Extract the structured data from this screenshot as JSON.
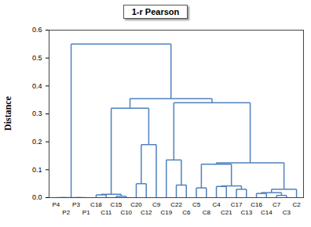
{
  "chart_data": {
    "type": "dendrogram",
    "title": "1-r Pearson",
    "y_label": "Distance",
    "color": "#4f81bd",
    "ylim": [
      0,
      0.6
    ],
    "yticks": [
      {
        "value": 0,
        "label": "0.0"
      },
      {
        "value": 0.1,
        "label": "0.1"
      },
      {
        "value": 0.2,
        "label": "0.2"
      },
      {
        "value": 0.3,
        "label": "0.3"
      },
      {
        "value": 0.4,
        "label": "0.4"
      },
      {
        "value": 0.5,
        "label": "0.5"
      },
      {
        "value": 0.6,
        "label": "0.6"
      }
    ],
    "tree": {
      "height": 0.55,
      "children": [
        {
          "height": 0,
          "children": [
            {
              "height": 0,
              "children": [
                "P4",
                "P2"
              ]
            },
            {
              "height": 0,
              "children": [
                "P3",
                "P1"
              ]
            }
          ]
        },
        {
          "height": 0.355,
          "children": [
            {
              "height": 0.32,
              "children": [
                {
                  "height": 0.012,
                  "children": [
                    {
                      "height": 0.01,
                      "children": [
                        "C18",
                        "C11"
                      ]
                    },
                    {
                      "height": 0.005,
                      "children": [
                        "C15",
                        "C10"
                      ]
                    }
                  ]
                },
                {
                  "height": 0.19,
                  "children": [
                    {
                      "height": 0.05,
                      "children": [
                        "C20",
                        "C12"
                      ]
                    },
                    "C9"
                  ]
                }
              ]
            },
            {
              "height": 0.34,
              "children": [
                {
                  "height": 0.135,
                  "children": [
                    "C19",
                    {
                      "height": 0.045,
                      "children": [
                        "C22",
                        "C6"
                      ]
                    }
                  ]
                },
                {
                  "height": 0.125,
                  "children": [
                    {
                      "height": 0.12,
                      "children": [
                        {
                          "height": 0.035,
                          "children": [
                            "C5",
                            "C8"
                          ]
                        },
                        {
                          "height": 0.042,
                          "children": [
                            {
                              "height": 0.04,
                              "children": [
                                "C4",
                                "C21"
                              ]
                            },
                            {
                              "height": 0.03,
                              "children": [
                                "C17",
                                "C13"
                              ]
                            }
                          ]
                        }
                      ]
                    },
                    {
                      "height": 0.03,
                      "children": [
                        {
                          "height": 0.018,
                          "children": [
                            {
                              "height": 0.015,
                              "children": [
                                "C16",
                                "C14"
                              ]
                            },
                            {
                              "height": 0.008,
                              "children": [
                                "C7",
                                "C3"
                              ]
                            }
                          ]
                        },
                        "C2"
                      ]
                    }
                  ]
                }
              ]
            }
          ]
        }
      ]
    }
  }
}
